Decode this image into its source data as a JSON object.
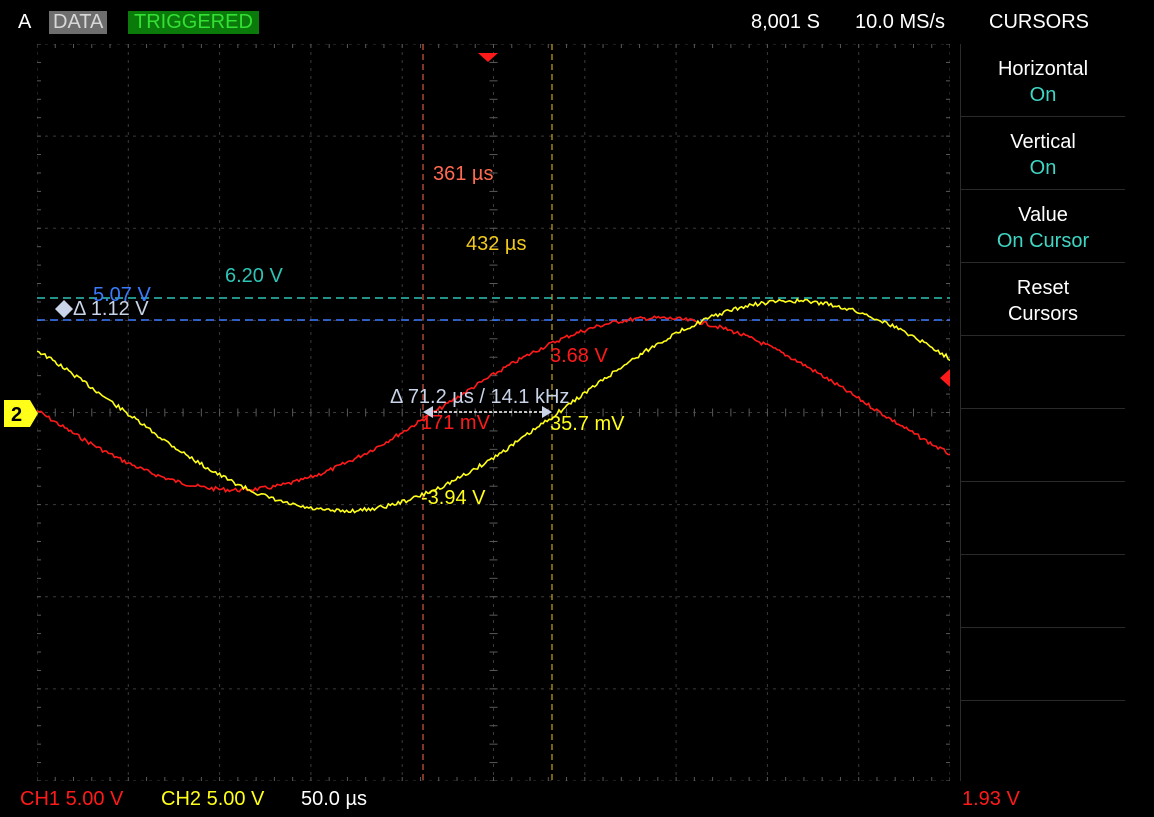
{
  "header": {
    "channel_letter": "A",
    "mode": "DATA",
    "trigger_status": "TRIGGERED",
    "sample_count": "8,001 S",
    "sample_rate": "10.0 MS/s",
    "menu_title": "CURSORS"
  },
  "menu": {
    "items": [
      {
        "label": "Horizontal",
        "value": "On"
      },
      {
        "label": "Vertical",
        "value": "On"
      },
      {
        "label": "Value",
        "value": "On Cursor"
      },
      {
        "label": "Reset",
        "value": "Cursors"
      }
    ]
  },
  "cursors": {
    "t1_label": "361 µs",
    "t2_label": "432 µs",
    "v1_label": "6.20 V",
    "v2_label": "5.07 V",
    "delta_v_label": "Δ 1.12 V",
    "delta_t_label": "Δ 71.2 µs / 14.1 kHz",
    "ch1_at_t1": "171 mV",
    "ch2_at_t2": "35.7 mV",
    "ch1_value": "3.68 V",
    "ch2_value": "-3.94 V"
  },
  "channel_marker": "2",
  "footer": {
    "ch1_scale": "CH1 5.00 V",
    "ch2_scale": "CH2 5.00 V",
    "timebase": "50.0 µs",
    "trigger_level": "1.93 V"
  },
  "colors": {
    "ch1": "#ff1a1a",
    "ch2": "#ffff1a",
    "cursor_v1": "#2ec4b6",
    "cursor_v2": "#3a7bff",
    "cursor_t1": "#ff6a50",
    "cursor_t2": "#f0c81e",
    "accent": "#3fd6c4"
  }
}
